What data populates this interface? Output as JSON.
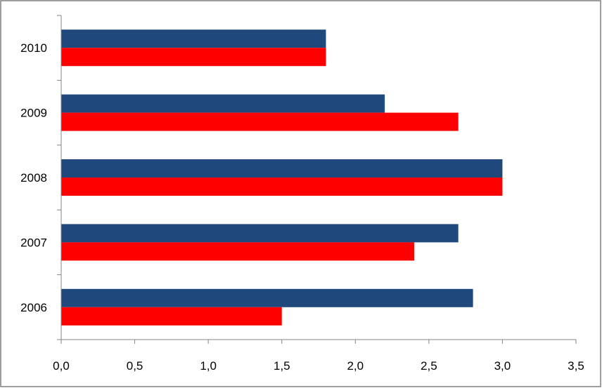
{
  "chart_data": {
    "type": "bar",
    "orientation": "horizontal",
    "categories": [
      "2006",
      "2007",
      "2008",
      "2009",
      "2010"
    ],
    "series": [
      {
        "color": "#1F497D",
        "values": [
          2.8,
          2.7,
          3.0,
          2.2,
          1.8
        ]
      },
      {
        "color": "#FF0000",
        "values": [
          1.5,
          2.4,
          3.0,
          2.7,
          1.8
        ]
      }
    ],
    "x_ticks": [
      "0,0",
      "0,5",
      "1,0",
      "1,5",
      "2,0",
      "2,5",
      "3,0",
      "3,5"
    ],
    "xlim": [
      0,
      3.5
    ],
    "title": "",
    "xlabel": "",
    "ylabel": "",
    "grid": false,
    "legend": "none",
    "frame_color": "#7F7F7F",
    "axis_color": "#868686"
  }
}
